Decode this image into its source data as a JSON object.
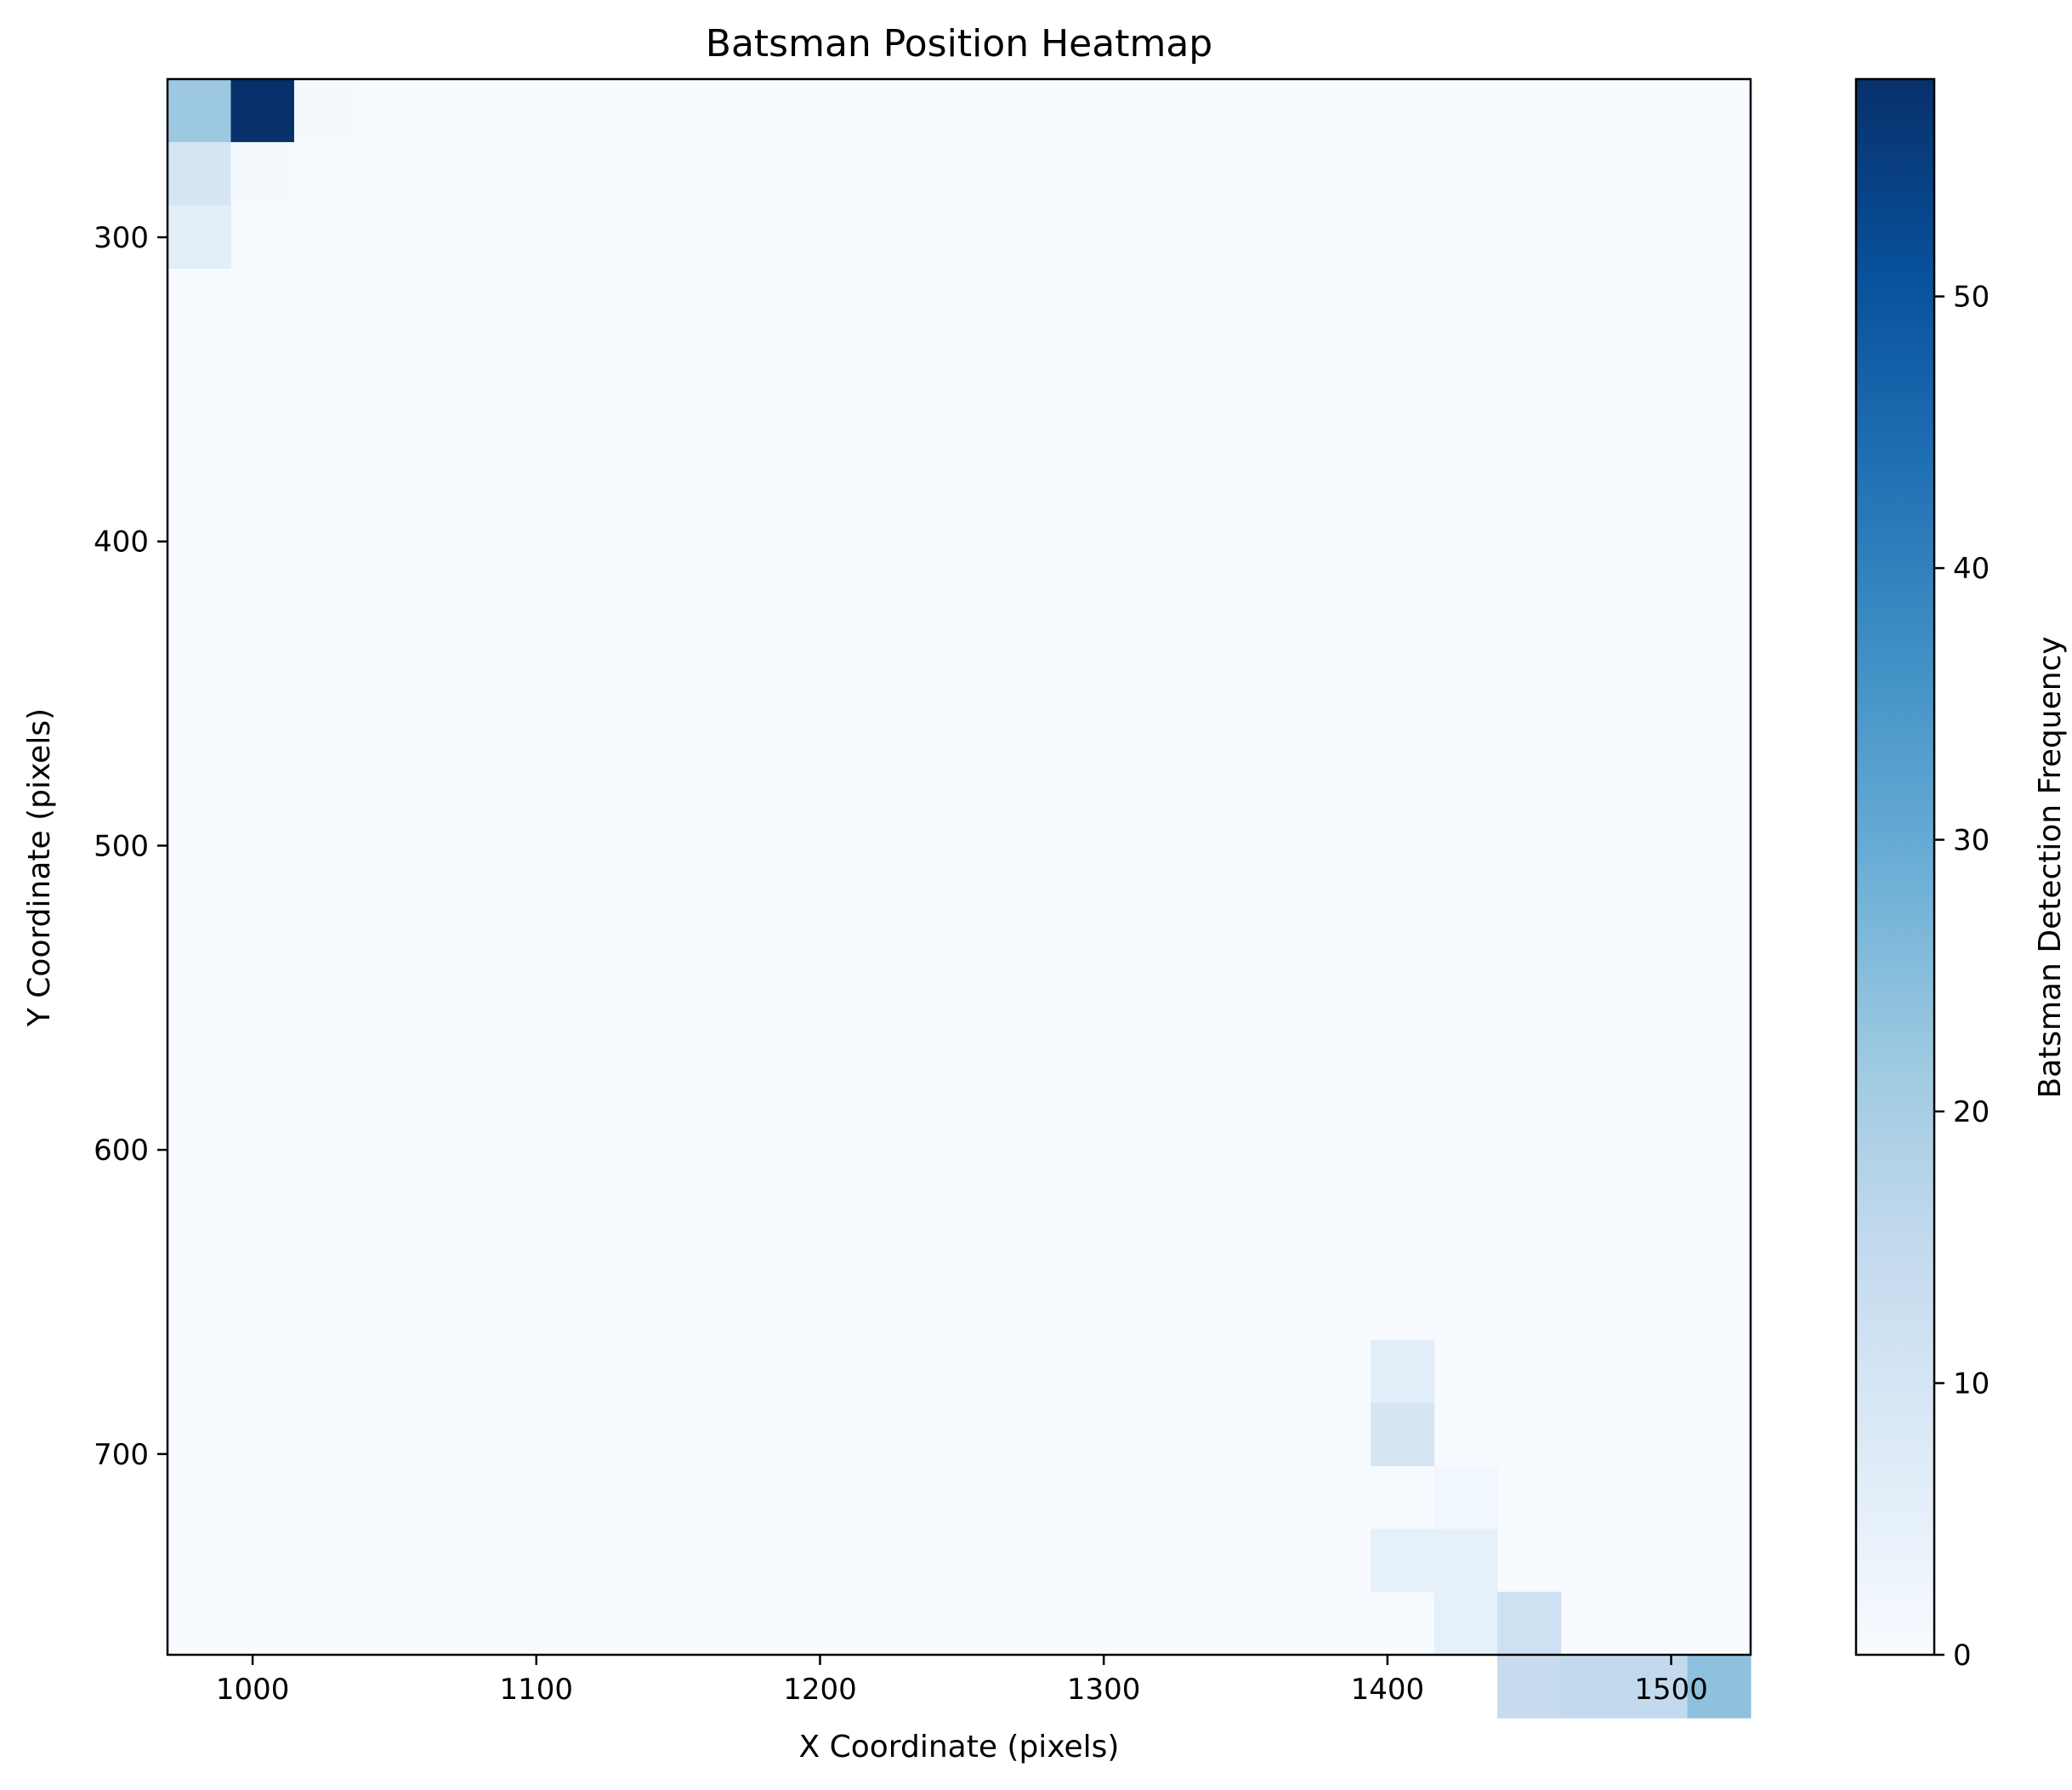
{
  "chart_data": {
    "type": "heatmap",
    "title": "Batsman Position Heatmap",
    "xlabel": "X Coordinate (pixels)",
    "ylabel": "Y Coordinate (pixels)",
    "colorbar_label": "Batsman Detection Frequency",
    "colormap": "Blues",
    "xlim": [
      970,
      1528
    ],
    "ylim": [
      766,
      248
    ],
    "y_inverted": true,
    "bins": 25,
    "x_ticks": [
      1000,
      1100,
      1200,
      1300,
      1400,
      1500
    ],
    "y_ticks": [
      300,
      400,
      500,
      600,
      700
    ],
    "colorbar_range": [
      0,
      58
    ],
    "colorbar_ticks": [
      0,
      10,
      20,
      30,
      40,
      50
    ],
    "cells": [
      {
        "col": 0,
        "row": 0,
        "value": 22
      },
      {
        "col": 1,
        "row": 0,
        "value": 58
      },
      {
        "col": 2,
        "row": 0,
        "value": 1
      },
      {
        "col": 0,
        "row": 1,
        "value": 10
      },
      {
        "col": 1,
        "row": 1,
        "value": 1
      },
      {
        "col": 0,
        "row": 2,
        "value": 6
      },
      {
        "col": 19,
        "row": 20,
        "value": 6
      },
      {
        "col": 19,
        "row": 21,
        "value": 10
      },
      {
        "col": 20,
        "row": 22,
        "value": 2
      },
      {
        "col": 19,
        "row": 23,
        "value": 5
      },
      {
        "col": 20,
        "row": 23,
        "value": 5
      },
      {
        "col": 20,
        "row": 24,
        "value": 5
      },
      {
        "col": 21,
        "row": 24,
        "value": 12
      },
      {
        "col": 21,
        "row": 25,
        "value": 14
      },
      {
        "col": 22,
        "row": 25,
        "value": 15
      },
      {
        "col": 23,
        "row": 25,
        "value": 15
      },
      {
        "col": 24,
        "row": 25,
        "value": 24
      }
    ]
  }
}
